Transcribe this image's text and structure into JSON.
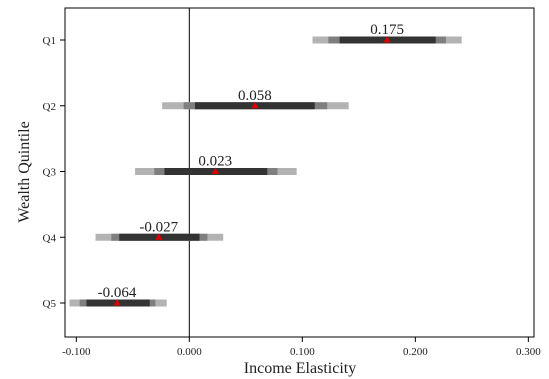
{
  "chart_data": {
    "type": "interval",
    "xlabel": "Income Elasticity",
    "ylabel": "Wealth Quintile",
    "xlim": [
      -0.11,
      0.305
    ],
    "x_ticks": [
      -0.1,
      0.0,
      0.1,
      0.2,
      0.3
    ],
    "x_tick_labels": [
      "-0.100",
      "0.000",
      "0.100",
      "0.200",
      "0.300"
    ],
    "reference_line_x": 0.0,
    "grid": false,
    "categories": [
      "Q1",
      "Q2",
      "Q3",
      "Q4",
      "Q5"
    ],
    "estimates": [
      {
        "category": "Q1",
        "value": 0.175,
        "label": "0.175",
        "ci90": [
          0.133,
          0.218
        ],
        "ci95": [
          0.123,
          0.227
        ],
        "ci99": [
          0.109,
          0.241
        ]
      },
      {
        "category": "Q2",
        "value": 0.058,
        "label": "0.058",
        "ci90": [
          0.005,
          0.111
        ],
        "ci95": [
          -0.005,
          0.122
        ],
        "ci99": [
          -0.024,
          0.141
        ]
      },
      {
        "category": "Q3",
        "value": 0.023,
        "label": "0.023",
        "ci90": [
          -0.022,
          0.069
        ],
        "ci95": [
          -0.031,
          0.078
        ],
        "ci99": [
          -0.048,
          0.095
        ]
      },
      {
        "category": "Q4",
        "value": -0.027,
        "label": "-0.027",
        "ci90": [
          -0.062,
          0.009
        ],
        "ci95": [
          -0.069,
          0.016
        ],
        "ci99": [
          -0.083,
          0.03
        ]
      },
      {
        "category": "Q5",
        "value": -0.064,
        "label": "-0.064",
        "ci90": [
          -0.091,
          -0.035
        ],
        "ci95": [
          -0.097,
          -0.03
        ],
        "ci99": [
          -0.106,
          -0.02
        ]
      }
    ],
    "colors": {
      "ci90": "#333333",
      "ci95": "#7f7f7f",
      "ci99": "#b3b3b3",
      "point": "#dd0000",
      "axis": "#000000"
    }
  }
}
